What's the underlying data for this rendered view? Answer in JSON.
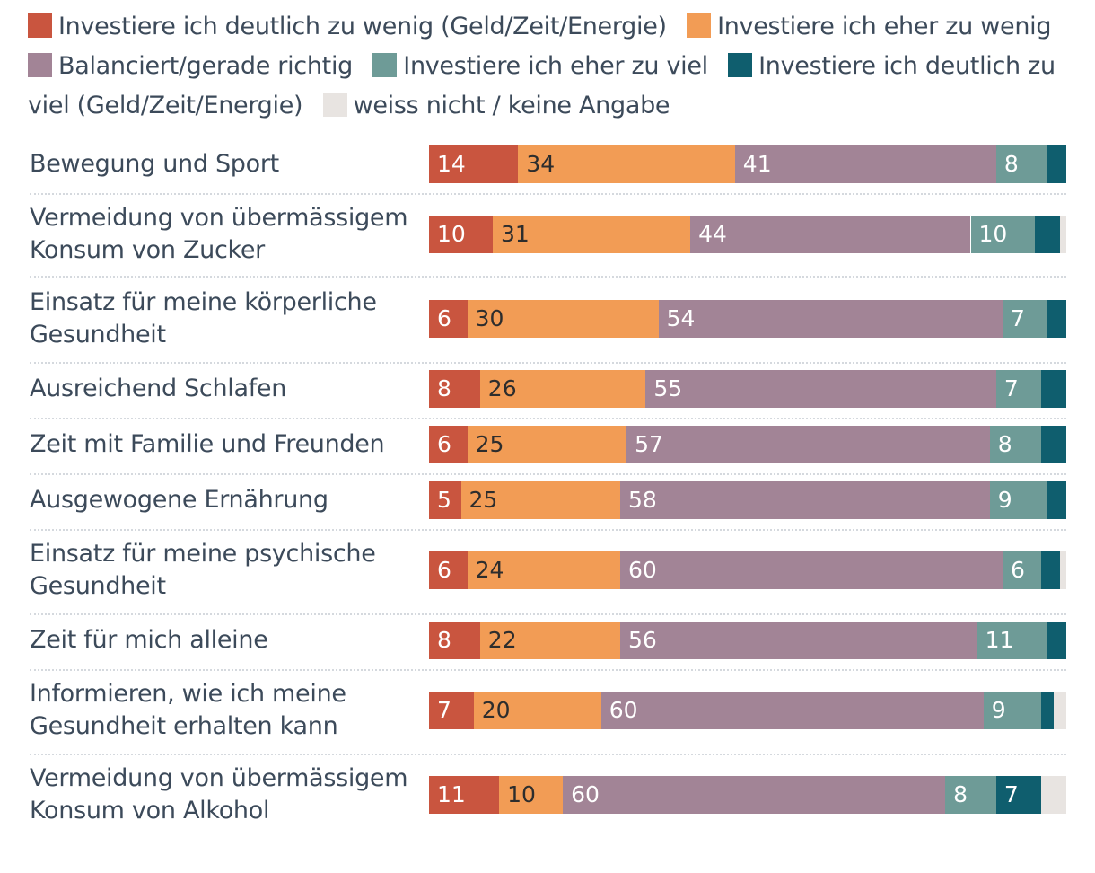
{
  "chart_data": {
    "type": "bar",
    "orientation": "horizontal",
    "stacked": true,
    "xlim": [
      0,
      100
    ],
    "legend_position": "top",
    "series": [
      {
        "name": "Investiere ich deutlich zu wenig (Geld/Zeit/Energie)",
        "color": "#c9553f",
        "label_color": "#ffffff",
        "values": [
          14,
          10,
          6,
          8,
          6,
          5,
          6,
          8,
          7,
          11
        ]
      },
      {
        "name": "Investiere ich eher zu wenig",
        "color": "#f29c55",
        "label_color": "#2d2d2d",
        "values": [
          34,
          31,
          30,
          26,
          25,
          25,
          24,
          22,
          20,
          10
        ]
      },
      {
        "name": "Balanciert/gerade richtig",
        "color": "#a28496",
        "label_color": "#ffffff",
        "values": [
          41,
          44,
          54,
          55,
          57,
          58,
          60,
          56,
          60,
          60
        ]
      },
      {
        "name": "Investiere ich eher zu viel",
        "color": "#6e9b97",
        "label_color": "#ffffff",
        "values": [
          8,
          10,
          7,
          7,
          8,
          9,
          6,
          11,
          9,
          8
        ]
      },
      {
        "name": "Investiere ich deutlich zu viel (Geld/Zeit/Energie)",
        "color": "#0f5e6e",
        "label_color": "#ffffff",
        "values": [
          3,
          4,
          3,
          4,
          4,
          3,
          3,
          3,
          2,
          7
        ]
      },
      {
        "name": "weiss nicht / keine Angabe",
        "color": "#e8e4e1",
        "label_color": "#2d2d2d",
        "values": [
          0,
          1,
          0,
          0,
          0,
          0,
          1,
          0,
          2,
          4
        ]
      }
    ],
    "visible_labels": [
      [
        "14",
        "34",
        "41",
        "8",
        "",
        ""
      ],
      [
        "10",
        "31",
        "44",
        "10",
        "",
        ""
      ],
      [
        "6",
        "30",
        "54",
        "7",
        "",
        ""
      ],
      [
        "8",
        "26",
        "55",
        "7",
        "",
        ""
      ],
      [
        "6",
        "25",
        "57",
        "8",
        "",
        ""
      ],
      [
        "5",
        "25",
        "58",
        "9",
        "",
        ""
      ],
      [
        "6",
        "24",
        "60",
        "6",
        "",
        ""
      ],
      [
        "8",
        "22",
        "56",
        "11",
        "",
        ""
      ],
      [
        "7",
        "20",
        "60",
        "9",
        "",
        ""
      ],
      [
        "11",
        "10",
        "60",
        "8",
        "7",
        ""
      ]
    ],
    "categories": [
      [
        "Bewegung und Sport"
      ],
      [
        "Vermeidung von übermässigem",
        "Konsum von Zucker"
      ],
      [
        "Einsatz für meine körperliche",
        "Gesundheit"
      ],
      [
        "Ausreichend Schlafen"
      ],
      [
        "Zeit mit Familie und Freunden"
      ],
      [
        "Ausgewogene Ernährung"
      ],
      [
        "Einsatz für meine psychische",
        "Gesundheit"
      ],
      [
        "Zeit für mich alleine"
      ],
      [
        "Informieren, wie ich meine",
        "Gesundheit erhalten kann"
      ],
      [
        "Vermeidung von übermässigem",
        "Konsum von Alkohol"
      ]
    ]
  }
}
